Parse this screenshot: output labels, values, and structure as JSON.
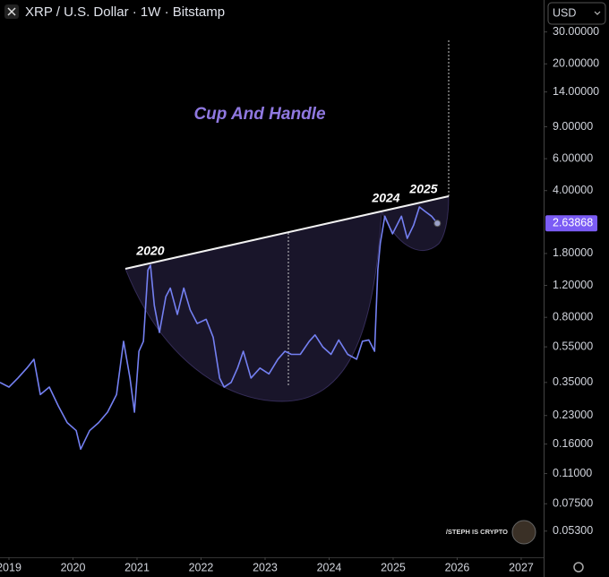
{
  "chart_data": {
    "type": "line",
    "title": "XRP / U.S. Dollar · 1W · Bitstamp",
    "currency": "USD",
    "log_scale": true,
    "grid": false,
    "annotations": [
      "Cup And Handle",
      "2020",
      "2024",
      "2025"
    ],
    "watermark": "/STEPH IS CRYPTO",
    "last_value": 2.63868,
    "xlim": [
      2018.86,
      2027.35
    ],
    "xticks": [
      2019,
      2020,
      2021,
      2022,
      2023,
      2024,
      2025,
      2026,
      2027
    ],
    "ylim": [
      0.038,
      45
    ],
    "yticks": [
      {
        "value": 30,
        "label": "30.00000"
      },
      {
        "value": 20,
        "label": "20.00000"
      },
      {
        "value": 14,
        "label": "14.00000"
      },
      {
        "value": 9,
        "label": "9.00000"
      },
      {
        "value": 6,
        "label": "6.00000"
      },
      {
        "value": 4,
        "label": "4.00000"
      },
      {
        "value": 1.8,
        "label": "1.80000"
      },
      {
        "value": 1.2,
        "label": "1.20000"
      },
      {
        "value": 0.8,
        "label": "0.80000"
      },
      {
        "value": 0.55,
        "label": "0.55000"
      },
      {
        "value": 0.35,
        "label": "0.35000"
      },
      {
        "value": 0.23,
        "label": "0.23000"
      },
      {
        "value": 0.16,
        "label": "0.16000"
      },
      {
        "value": 0.11,
        "label": "0.11000"
      },
      {
        "value": 0.075,
        "label": "0.07500"
      },
      {
        "value": 0.053,
        "label": "0.05300"
      }
    ],
    "series": [
      {
        "name": "XRP / U.S. Dollar",
        "color": "#7480f2",
        "x": [
          2018.86,
          2019.0,
          2019.14,
          2019.28,
          2019.39,
          2019.49,
          2019.63,
          2019.77,
          2019.91,
          2020.05,
          2020.12,
          2020.26,
          2020.4,
          2020.54,
          2020.68,
          2020.79,
          2020.89,
          2020.96,
          2021.03,
          2021.1,
          2021.17,
          2021.21,
          2021.27,
          2021.35,
          2021.45,
          2021.52,
          2021.63,
          2021.73,
          2021.83,
          2021.94,
          2022.08,
          2022.19,
          2022.29,
          2022.36,
          2022.47,
          2022.57,
          2022.66,
          2022.78,
          2022.92,
          2023.06,
          2023.2,
          2023.31,
          2023.41,
          2023.55,
          2023.69,
          2023.78,
          2023.9,
          2024.03,
          2024.15,
          2024.29,
          2024.43,
          2024.52,
          2024.62,
          2024.71,
          2024.76,
          2024.8,
          2024.87,
          2024.99,
          2025.13,
          2025.22,
          2025.32,
          2025.41,
          2025.5,
          2025.6,
          2025.69
        ],
        "values": [
          0.35,
          0.33,
          0.37,
          0.42,
          0.47,
          0.3,
          0.33,
          0.26,
          0.21,
          0.19,
          0.15,
          0.19,
          0.21,
          0.24,
          0.3,
          0.59,
          0.37,
          0.24,
          0.52,
          0.59,
          1.46,
          1.55,
          0.93,
          0.66,
          1.04,
          1.16,
          0.83,
          1.16,
          0.88,
          0.74,
          0.78,
          0.62,
          0.37,
          0.33,
          0.35,
          0.42,
          0.52,
          0.37,
          0.42,
          0.39,
          0.47,
          0.52,
          0.5,
          0.5,
          0.59,
          0.64,
          0.55,
          0.5,
          0.6,
          0.5,
          0.47,
          0.59,
          0.6,
          0.52,
          1.46,
          2.06,
          2.89,
          2.31,
          2.89,
          2.18,
          2.58,
          3.25,
          3.07,
          2.89,
          2.64
        ]
      }
    ]
  }
}
